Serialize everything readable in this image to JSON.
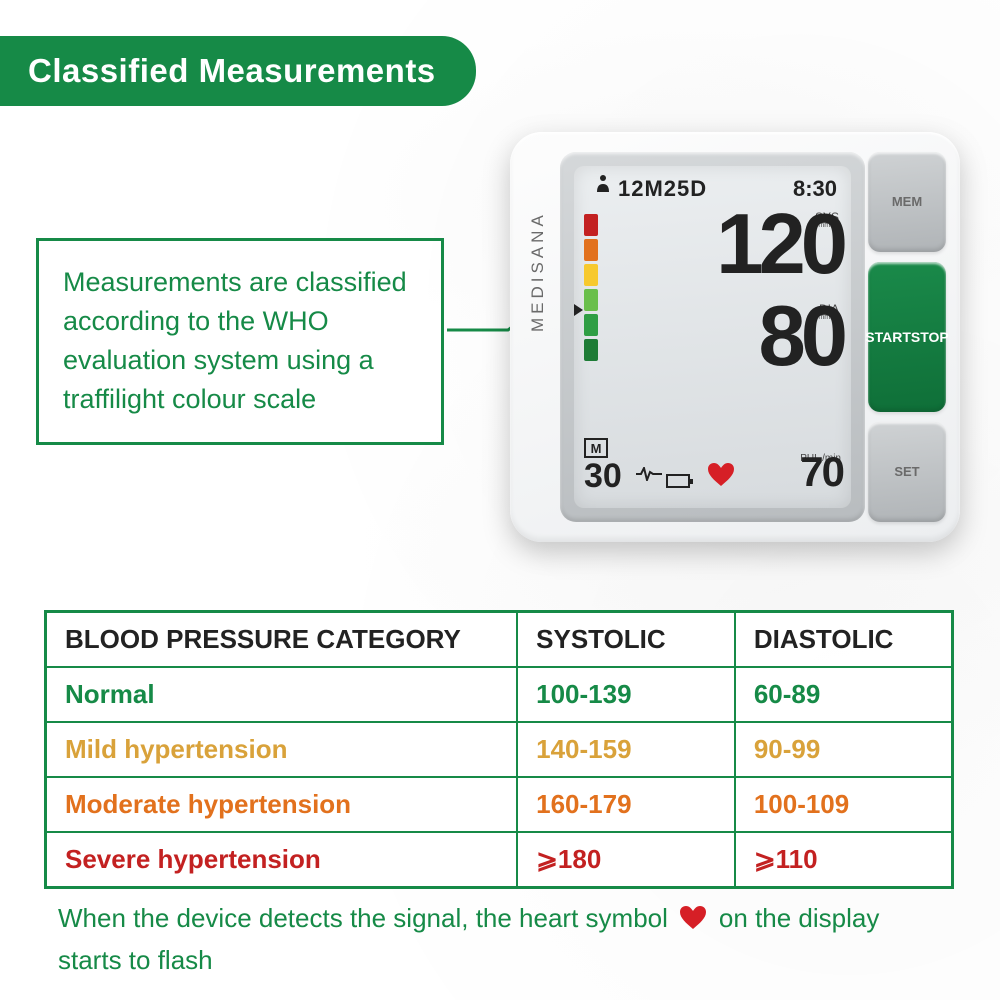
{
  "header": {
    "title": "Classified  Measurements"
  },
  "description": "Measurements are classified according to the WHO evaluation system using a traffilight  colour scale",
  "colors": {
    "brand_green": "#168a47",
    "heart_red": "#d61f26",
    "row_normal": "#168a47",
    "row_mild": "#d9a23a",
    "row_moderate": "#e2711d",
    "row_severe": "#c32121"
  },
  "device": {
    "brand": "MEDISANA",
    "date": "12M25D",
    "time": "8:30",
    "sys_value": "120",
    "sys_label": "SYS",
    "sys_unit": "mmHg",
    "dia_value": "80",
    "dia_label": "DIA",
    "dia_unit": "mmHg",
    "pul_value": "70",
    "pul_label": "PUL /min",
    "mem_value": "30",
    "mem_box": "M",
    "buttons": {
      "mem": "MEM",
      "start": "START\nSTOP",
      "set": "SET"
    },
    "traffic_light_colors": [
      "#c32121",
      "#e2711d",
      "#f7c92e",
      "#6abf4b",
      "#2f9e44",
      "#1e7c36"
    ]
  },
  "table": {
    "columns": [
      "BLOOD PRESSURE CATEGORY",
      "SYSTOLIC",
      "DIASTOLIC"
    ],
    "rows": [
      {
        "label": "Normal",
        "systolic": "100-139",
        "diastolic": "60-89",
        "color_key": "row_normal"
      },
      {
        "label": "Mild hypertension",
        "systolic": "140-159",
        "diastolic": "90-99",
        "color_key": "row_mild"
      },
      {
        "label": "Moderate hypertension",
        "systolic": "160-179",
        "diastolic": "100-109",
        "color_key": "row_moderate"
      },
      {
        "label": "Severe hypertension",
        "systolic": "⩾180",
        "diastolic": "⩾110",
        "color_key": "row_severe"
      }
    ]
  },
  "footnote": {
    "before": "When the device detects the signal, the heart symbol",
    "after": "on the display starts to flash"
  }
}
